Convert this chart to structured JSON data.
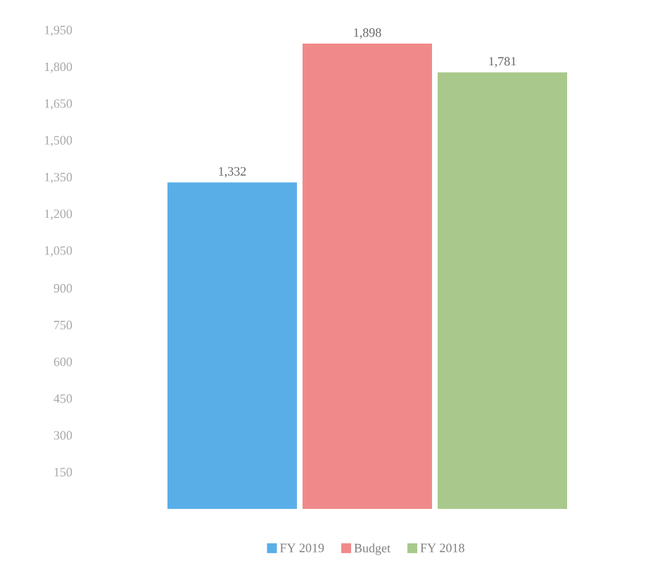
{
  "chart_data": {
    "type": "bar",
    "categories": [
      null
    ],
    "series": [
      {
        "name": "FY 2019",
        "color": "#5aaee8",
        "values": [
          1332
        ],
        "value_labels": [
          "1,332"
        ]
      },
      {
        "name": "Budget",
        "color": "#f08a8a",
        "values": [
          1898
        ],
        "value_labels": [
          "1,898"
        ]
      },
      {
        "name": "FY 2018",
        "color": "#a9c98c",
        "values": [
          1781
        ],
        "value_labels": [
          "1,781"
        ]
      }
    ],
    "ylim": [
      0,
      1950
    ],
    "yticks": [
      {
        "value": 150,
        "label": "150"
      },
      {
        "value": 300,
        "label": "300"
      },
      {
        "value": 450,
        "label": "450"
      },
      {
        "value": 600,
        "label": "600"
      },
      {
        "value": 750,
        "label": "750"
      },
      {
        "value": 900,
        "label": "900"
      },
      {
        "value": 1050,
        "label": "1,050"
      },
      {
        "value": 1200,
        "label": "1,200"
      },
      {
        "value": 1350,
        "label": "1,350"
      },
      {
        "value": 1500,
        "label": "1,500"
      },
      {
        "value": 1650,
        "label": "1,650"
      },
      {
        "value": 1800,
        "label": "1,800"
      },
      {
        "value": 1950,
        "label": "1,950"
      }
    ],
    "grid": false,
    "legend": "bottom"
  }
}
